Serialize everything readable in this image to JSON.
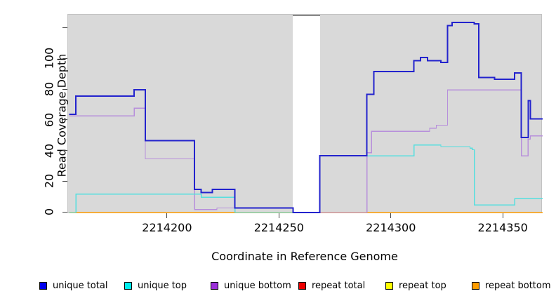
{
  "xlabel": "Coordinate in Reference Genome",
  "ylabel": "Read Coverage Depth",
  "chart_data": {
    "type": "line",
    "subtype": "step-coverage-plot",
    "title": "",
    "xlabel": "Coordinate in Reference Genome",
    "ylabel": "Read Coverage Depth",
    "xlim": [
      2214155.5,
      2214367.5
    ],
    "ylim": [
      0,
      129
    ],
    "grid": false,
    "plot_background": "#d9d9d9",
    "gap_region": {
      "from": 2214256,
      "to": 2214268,
      "note": "white band, no data; total line crosses at 0"
    },
    "x_ticks": [
      {
        "value": 2214200,
        "label": "2214200"
      },
      {
        "value": 2214250,
        "label": "2214250"
      },
      {
        "value": 2214300,
        "label": "2214300"
      },
      {
        "value": 2214350,
        "label": "2214350"
      }
    ],
    "y_ticks": [
      {
        "value": 0,
        "label": "0"
      },
      {
        "value": 20,
        "label": "20"
      },
      {
        "value": 40,
        "label": "40"
      },
      {
        "value": 60,
        "label": "60"
      },
      {
        "value": 80,
        "label": "80"
      },
      {
        "value": 100,
        "label": "100"
      },
      {
        "value": 120,
        "label": ""
      }
    ],
    "legend_position": "bottom",
    "series": [
      {
        "name": "unique total",
        "color": "#2323cd",
        "legend_color": "#0000ee",
        "width": 2,
        "z": 6,
        "points": [
          [
            2214156,
            64
          ],
          [
            2214159,
            76
          ],
          [
            2214185,
            80
          ],
          [
            2214190,
            47
          ],
          [
            2214212,
            15
          ],
          [
            2214215,
            13
          ],
          [
            2214220,
            15
          ],
          [
            2214230,
            3
          ],
          [
            2214256,
            0
          ],
          [
            2214268,
            37
          ],
          [
            2214289,
            77
          ],
          [
            2214292,
            92
          ],
          [
            2214310,
            99
          ],
          [
            2214313,
            101
          ],
          [
            2214316,
            99
          ],
          [
            2214322,
            98
          ],
          [
            2214325,
            122
          ],
          [
            2214327,
            124
          ],
          [
            2214337,
            123
          ],
          [
            2214339,
            88
          ],
          [
            2214346,
            87
          ],
          [
            2214355,
            91
          ],
          [
            2214358,
            49
          ],
          [
            2214361,
            73
          ],
          [
            2214362,
            61
          ]
        ]
      },
      {
        "name": "unique top",
        "color": "#55dede",
        "legend_color": "#00eeee",
        "width": 1.3,
        "z": 5,
        "points": [
          [
            2214156,
            0
          ],
          [
            2214159,
            12
          ],
          [
            2214215,
            10
          ],
          [
            2214230,
            0
          ],
          [
            2214268,
            37
          ],
          [
            2214310,
            44
          ],
          [
            2214322,
            43
          ],
          [
            2214335,
            42
          ],
          [
            2214336,
            41
          ],
          [
            2214337,
            5
          ],
          [
            2214355,
            9
          ]
        ]
      },
      {
        "name": "unique bottom",
        "color": "#b78fdb",
        "legend_color": "#9b30d9",
        "width": 1.3,
        "z": 4,
        "points": [
          [
            2214156,
            63
          ],
          [
            2214185,
            68
          ],
          [
            2214190,
            35
          ],
          [
            2214212,
            2
          ],
          [
            2214222,
            3
          ],
          [
            2214256,
            0
          ],
          [
            2214289,
            39
          ],
          [
            2214291,
            53
          ],
          [
            2214317,
            55
          ],
          [
            2214320,
            57
          ],
          [
            2214325,
            80
          ],
          [
            2214358,
            37
          ],
          [
            2214361,
            48
          ],
          [
            2214362,
            50
          ]
        ]
      },
      {
        "name": "repeat total",
        "color": "#dd2222",
        "legend_color": "#ee0000",
        "width": 1.3,
        "z": 1,
        "points": [
          [
            2214156,
            0
          ]
        ]
      },
      {
        "name": "repeat top",
        "color": "#f5f500",
        "legend_color": "#ffff00",
        "width": 1.3,
        "z": 2,
        "points": [
          [
            2214156,
            0
          ]
        ]
      },
      {
        "name": "repeat bottom",
        "color": "#ff9d00",
        "legend_color": "#ff9d00",
        "width": 1.5,
        "z": 3,
        "points": [
          [
            2214156,
            0
          ]
        ]
      }
    ]
  }
}
